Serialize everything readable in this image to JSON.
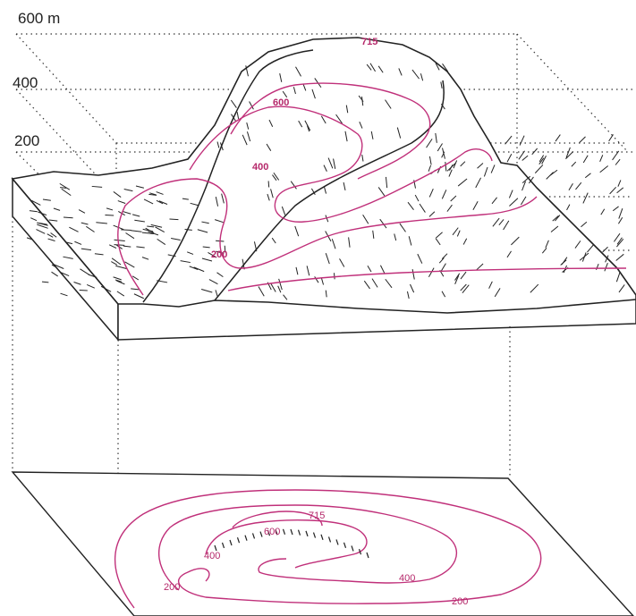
{
  "elevation_axis": {
    "labels": [
      "600 m",
      "400",
      "200"
    ]
  },
  "block_contours": {
    "summit": "715",
    "labels": [
      "600",
      "400",
      "200"
    ]
  },
  "map_contours": {
    "summit": "715",
    "labels": [
      "600",
      "400",
      "400",
      "200",
      "200"
    ]
  },
  "colors": {
    "contour": "#c0307a",
    "ink": "#222222"
  }
}
